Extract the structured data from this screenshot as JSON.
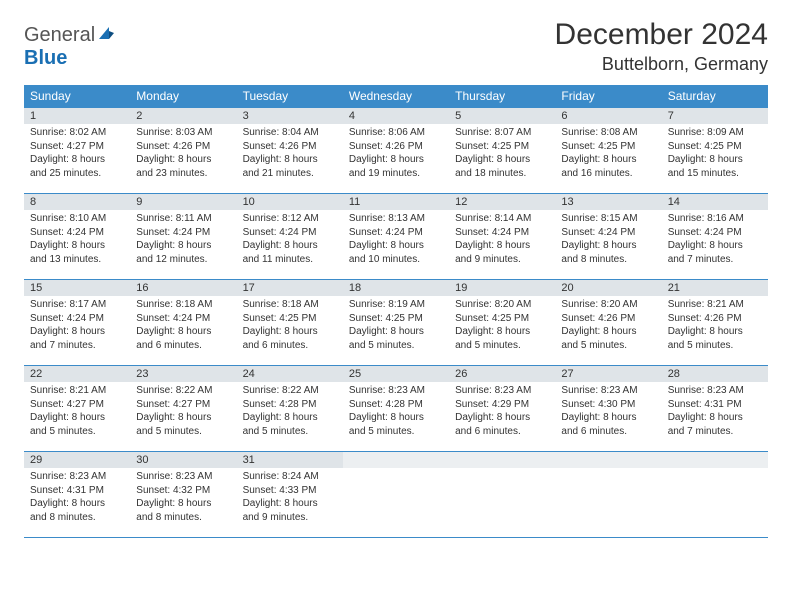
{
  "logo": {
    "textGray": "General",
    "textBlue": "Blue"
  },
  "header": {
    "title": "December 2024",
    "location": "Buttelborn, Germany"
  },
  "colors": {
    "accent": "#3b8bc9",
    "headerBg": "#3b8bc9",
    "headerText": "#ffffff",
    "dayNumBg": "#dfe4e8",
    "border": "#3b8bc9",
    "body": "#333333"
  },
  "dayNames": [
    "Sunday",
    "Monday",
    "Tuesday",
    "Wednesday",
    "Thursday",
    "Friday",
    "Saturday"
  ],
  "days": [
    {
      "n": 1,
      "sunrise": "8:02 AM",
      "sunset": "4:27 PM",
      "daylight": "8 hours and 25 minutes."
    },
    {
      "n": 2,
      "sunrise": "8:03 AM",
      "sunset": "4:26 PM",
      "daylight": "8 hours and 23 minutes."
    },
    {
      "n": 3,
      "sunrise": "8:04 AM",
      "sunset": "4:26 PM",
      "daylight": "8 hours and 21 minutes."
    },
    {
      "n": 4,
      "sunrise": "8:06 AM",
      "sunset": "4:26 PM",
      "daylight": "8 hours and 19 minutes."
    },
    {
      "n": 5,
      "sunrise": "8:07 AM",
      "sunset": "4:25 PM",
      "daylight": "8 hours and 18 minutes."
    },
    {
      "n": 6,
      "sunrise": "8:08 AM",
      "sunset": "4:25 PM",
      "daylight": "8 hours and 16 minutes."
    },
    {
      "n": 7,
      "sunrise": "8:09 AM",
      "sunset": "4:25 PM",
      "daylight": "8 hours and 15 minutes."
    },
    {
      "n": 8,
      "sunrise": "8:10 AM",
      "sunset": "4:24 PM",
      "daylight": "8 hours and 13 minutes."
    },
    {
      "n": 9,
      "sunrise": "8:11 AM",
      "sunset": "4:24 PM",
      "daylight": "8 hours and 12 minutes."
    },
    {
      "n": 10,
      "sunrise": "8:12 AM",
      "sunset": "4:24 PM",
      "daylight": "8 hours and 11 minutes."
    },
    {
      "n": 11,
      "sunrise": "8:13 AM",
      "sunset": "4:24 PM",
      "daylight": "8 hours and 10 minutes."
    },
    {
      "n": 12,
      "sunrise": "8:14 AM",
      "sunset": "4:24 PM",
      "daylight": "8 hours and 9 minutes."
    },
    {
      "n": 13,
      "sunrise": "8:15 AM",
      "sunset": "4:24 PM",
      "daylight": "8 hours and 8 minutes."
    },
    {
      "n": 14,
      "sunrise": "8:16 AM",
      "sunset": "4:24 PM",
      "daylight": "8 hours and 7 minutes."
    },
    {
      "n": 15,
      "sunrise": "8:17 AM",
      "sunset": "4:24 PM",
      "daylight": "8 hours and 7 minutes."
    },
    {
      "n": 16,
      "sunrise": "8:18 AM",
      "sunset": "4:24 PM",
      "daylight": "8 hours and 6 minutes."
    },
    {
      "n": 17,
      "sunrise": "8:18 AM",
      "sunset": "4:25 PM",
      "daylight": "8 hours and 6 minutes."
    },
    {
      "n": 18,
      "sunrise": "8:19 AM",
      "sunset": "4:25 PM",
      "daylight": "8 hours and 5 minutes."
    },
    {
      "n": 19,
      "sunrise": "8:20 AM",
      "sunset": "4:25 PM",
      "daylight": "8 hours and 5 minutes."
    },
    {
      "n": 20,
      "sunrise": "8:20 AM",
      "sunset": "4:26 PM",
      "daylight": "8 hours and 5 minutes."
    },
    {
      "n": 21,
      "sunrise": "8:21 AM",
      "sunset": "4:26 PM",
      "daylight": "8 hours and 5 minutes."
    },
    {
      "n": 22,
      "sunrise": "8:21 AM",
      "sunset": "4:27 PM",
      "daylight": "8 hours and 5 minutes."
    },
    {
      "n": 23,
      "sunrise": "8:22 AM",
      "sunset": "4:27 PM",
      "daylight": "8 hours and 5 minutes."
    },
    {
      "n": 24,
      "sunrise": "8:22 AM",
      "sunset": "4:28 PM",
      "daylight": "8 hours and 5 minutes."
    },
    {
      "n": 25,
      "sunrise": "8:23 AM",
      "sunset": "4:28 PM",
      "daylight": "8 hours and 5 minutes."
    },
    {
      "n": 26,
      "sunrise": "8:23 AM",
      "sunset": "4:29 PM",
      "daylight": "8 hours and 6 minutes."
    },
    {
      "n": 27,
      "sunrise": "8:23 AM",
      "sunset": "4:30 PM",
      "daylight": "8 hours and 6 minutes."
    },
    {
      "n": 28,
      "sunrise": "8:23 AM",
      "sunset": "4:31 PM",
      "daylight": "8 hours and 7 minutes."
    },
    {
      "n": 29,
      "sunrise": "8:23 AM",
      "sunset": "4:31 PM",
      "daylight": "8 hours and 8 minutes."
    },
    {
      "n": 30,
      "sunrise": "8:23 AM",
      "sunset": "4:32 PM",
      "daylight": "8 hours and 8 minutes."
    },
    {
      "n": 31,
      "sunrise": "8:24 AM",
      "sunset": "4:33 PM",
      "daylight": "8 hours and 9 minutes."
    }
  ],
  "labels": {
    "sunrise": "Sunrise:",
    "sunset": "Sunset:",
    "daylight": "Daylight:"
  },
  "grid": {
    "startColumn": 0,
    "totalCells": 35
  }
}
